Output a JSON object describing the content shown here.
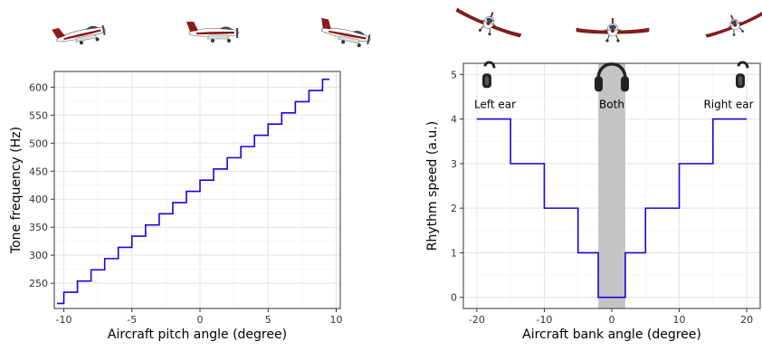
{
  "colors": {
    "line": "#1f00e0",
    "band": "#c4c4c4",
    "plane_body": "#ffffff",
    "plane_accent": "#8c1a1a"
  },
  "icons": {
    "left_planes": [
      "aircraft-pitch-down-icon",
      "aircraft-level-icon",
      "aircraft-pitch-up-icon"
    ],
    "right_planes": [
      "aircraft-bank-left-icon",
      "aircraft-level-front-icon",
      "aircraft-bank-right-icon"
    ],
    "headphones": [
      "left-ear-headphones-icon",
      "both-ears-headphones-icon",
      "right-ear-headphones-icon"
    ]
  },
  "chart_data": [
    {
      "type": "line",
      "step": true,
      "xlabel": "Aircraft pitch angle (degree)",
      "ylabel": "Tone frequency (Hz)",
      "xlim": [
        -10.7,
        10.3
      ],
      "ylim": [
        205,
        628
      ],
      "xticks": [
        -10,
        -5,
        0,
        5,
        10
      ],
      "yticks": [
        250,
        300,
        350,
        400,
        450,
        500,
        550,
        600
      ],
      "grid": true,
      "series": [
        {
          "x": [
            -10.5,
            -10,
            -9,
            -8,
            -7,
            -6,
            -5,
            -4,
            -3,
            -2,
            -1,
            0,
            1,
            2,
            3,
            4,
            5,
            6,
            7,
            8,
            9,
            9.5
          ],
          "y": [
            214,
            234,
            254,
            274,
            294,
            314,
            334,
            354,
            374,
            394,
            414,
            434,
            454,
            474,
            494,
            514,
            534,
            554,
            574,
            594,
            614,
            614
          ]
        }
      ]
    },
    {
      "type": "line",
      "step": true,
      "xlabel": "Aircraft bank angle (degree)",
      "ylabel": "Rhythm speed (a.u.)",
      "xlim": [
        -22,
        22
      ],
      "ylim": [
        -0.25,
        5.25
      ],
      "xticks": [
        -20,
        -10,
        0,
        10,
        20
      ],
      "yticks": [
        0,
        1,
        2,
        3,
        4,
        5
      ],
      "grid": true,
      "shaded_band": {
        "x": [
          -2,
          2
        ]
      },
      "annotations": [
        "Left ear",
        "Both",
        "Right ear"
      ],
      "series": [
        {
          "x": [
            -20,
            -15,
            -10,
            -5,
            -2,
            2,
            5,
            10,
            15,
            20
          ],
          "y": [
            4,
            3,
            2,
            1,
            0,
            1,
            2,
            3,
            4,
            4
          ]
        }
      ]
    }
  ]
}
